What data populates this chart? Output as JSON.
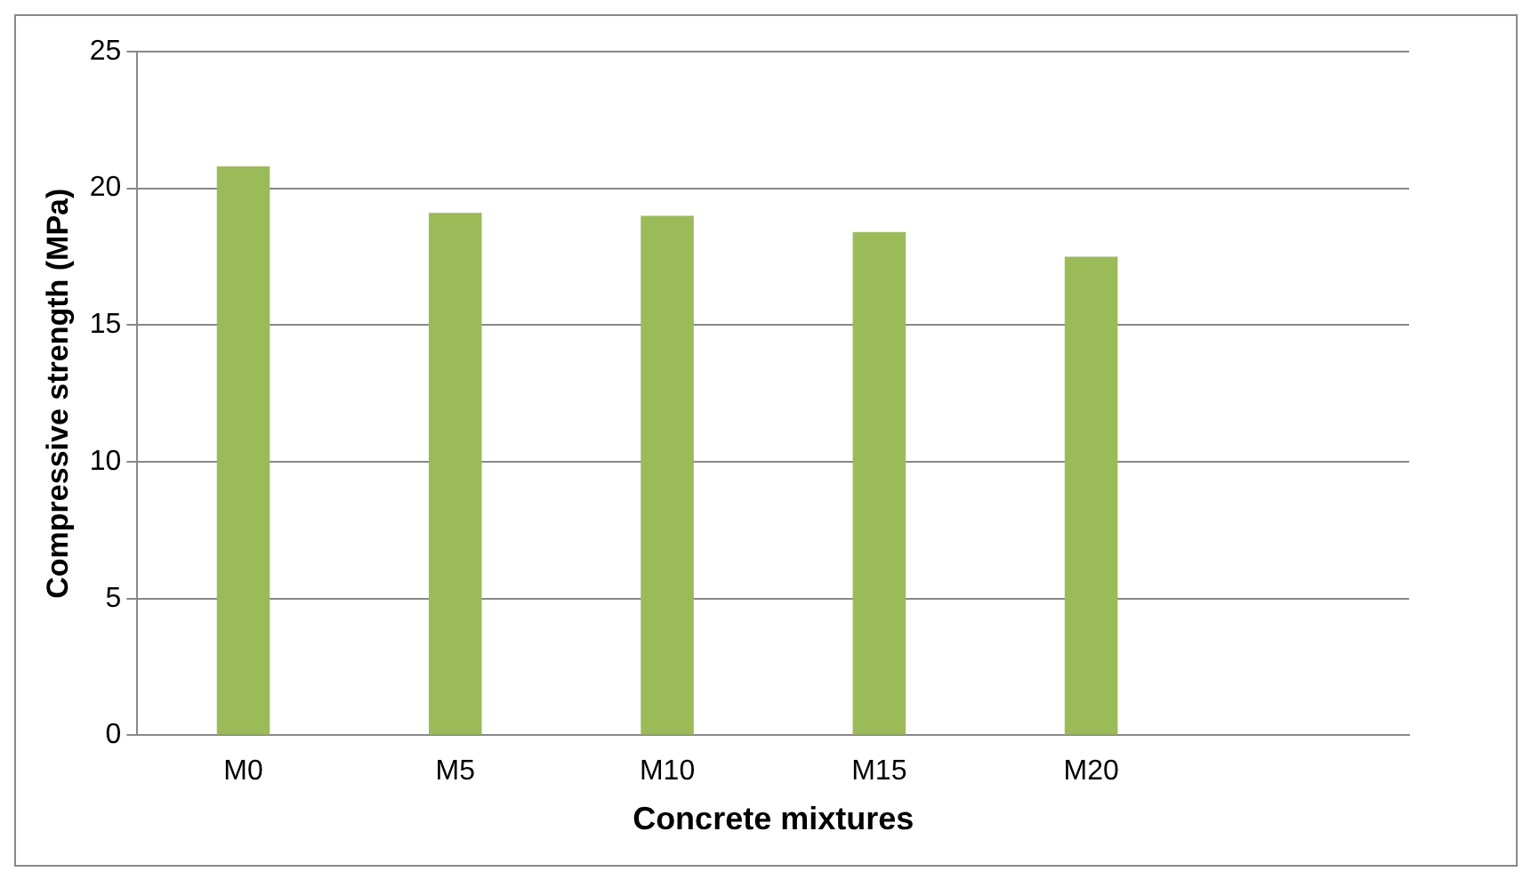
{
  "chart_data": {
    "type": "bar",
    "xlabel": "Concrete mixtures",
    "ylabel": "Compressive strength (MPa)",
    "categories": [
      "M0",
      "M5",
      "M10",
      "M15",
      "M20",
      null
    ],
    "values": [
      20.8,
      19.1,
      19.0,
      18.4,
      17.5,
      null
    ],
    "color": "#9bbb59",
    "ylim": [
      0,
      25
    ],
    "yticks": [
      0,
      5,
      10,
      15,
      20,
      25
    ],
    "grid": "y",
    "legend": false
  }
}
